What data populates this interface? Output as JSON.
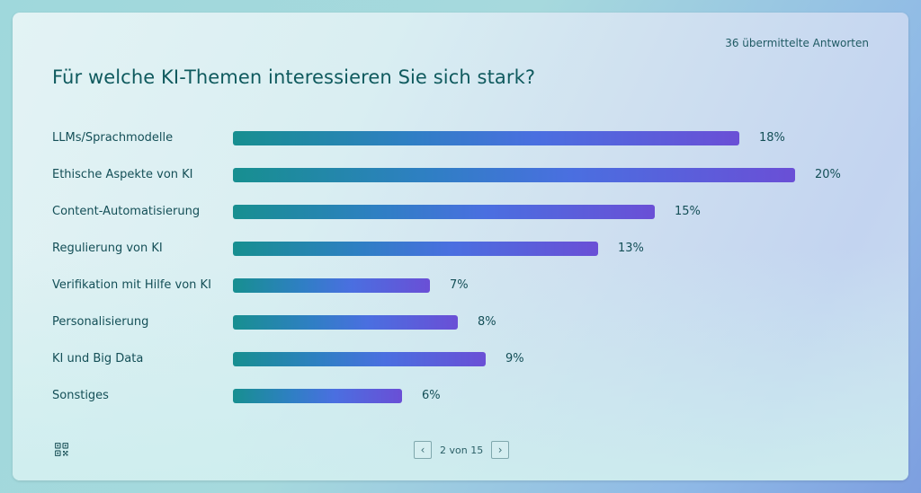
{
  "header": {
    "responses": "36 übermittelte Antworten",
    "title": "Für welche KI-Themen interessieren Sie sich stark?"
  },
  "chart_data": {
    "type": "bar",
    "orientation": "horizontal",
    "title": "Für welche KI-Themen interessieren Sie sich stark?",
    "categories": [
      "LLMs/Sprachmodelle",
      "Ethische Aspekte von KI",
      "Content-Automatisierung",
      "Regulierung von KI",
      "Verifikation mit Hilfe von KI",
      "Personalisierung",
      "KI und Big Data",
      "Sonstiges"
    ],
    "values": [
      18,
      20,
      15,
      13,
      7,
      8,
      9,
      6
    ],
    "value_labels": [
      "18%",
      "20%",
      "15%",
      "13%",
      "7%",
      "8%",
      "9%",
      "6%"
    ],
    "unit": "%",
    "xlabel": "",
    "ylabel": "",
    "xlim": [
      0,
      20
    ],
    "grid": false,
    "bar_gradient": [
      "#178f90",
      "#4a6fe0",
      "#6a4fd6"
    ]
  },
  "footer": {
    "qr_icon": "qr-code-icon",
    "pagination": {
      "text": "2 von 15",
      "prev_icon": "‹",
      "next_icon": "›"
    }
  }
}
